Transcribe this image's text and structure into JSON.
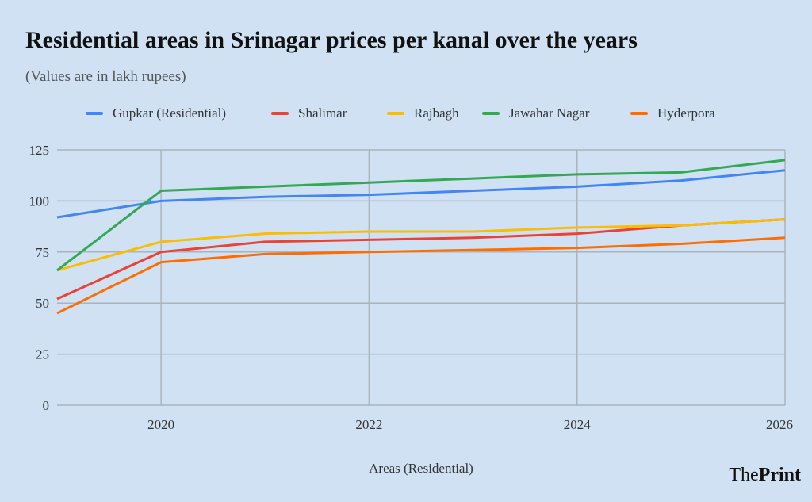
{
  "chart_data": {
    "type": "line",
    "title": "Residential areas in Srinagar prices per kanal over the years",
    "subtitle": "(Values are in lakh rupees)",
    "xlabel": "Areas (Residential)",
    "ylabel": "",
    "x": [
      2019,
      2020,
      2021,
      2022,
      2023,
      2024,
      2025,
      2026
    ],
    "xlim": [
      2019,
      2026
    ],
    "xticks": [
      "2020",
      "2022",
      "2024",
      "2026"
    ],
    "ylim": [
      0,
      125
    ],
    "yticks": [
      "0",
      "25",
      "50",
      "75",
      "100",
      "125"
    ],
    "grid": true,
    "legend": "top",
    "series": [
      {
        "name": "Gupkar (Residential)",
        "color": "#4285f4",
        "values": [
          92,
          100,
          102,
          103,
          105,
          107,
          110,
          115
        ]
      },
      {
        "name": "Shalimar",
        "color": "#ea4335",
        "values": [
          52,
          75,
          80,
          81,
          82,
          84,
          88,
          91
        ]
      },
      {
        "name": "Rajbagh",
        "color": "#fbbc04",
        "values": [
          66,
          80,
          84,
          85,
          85,
          87,
          88,
          91
        ]
      },
      {
        "name": "Jawahar Nagar",
        "color": "#34a853",
        "values": [
          66,
          105,
          107,
          109,
          111,
          113,
          114,
          120
        ]
      },
      {
        "name": "Hyderpora",
        "color": "#ff6d01",
        "values": [
          45,
          70,
          74,
          75,
          76,
          77,
          79,
          82
        ]
      }
    ]
  },
  "logo": {
    "part1": "The",
    "part2": "Print"
  }
}
